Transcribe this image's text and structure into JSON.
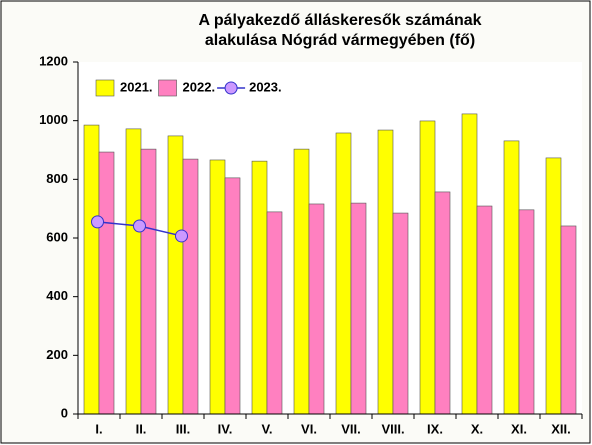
{
  "chart_data": {
    "type": "bar",
    "title": [
      "A pályakezdő álláskeresők számának",
      "alakulása Nógrád vármegyében (fő)"
    ],
    "categories": [
      "I.",
      "II.",
      "III.",
      "IV.",
      "V.",
      "VI.",
      "VII.",
      "VIII.",
      "IX.",
      "X.",
      "XI.",
      "XII."
    ],
    "series": [
      {
        "name": "2021.",
        "color": "#ffff00",
        "type": "bar",
        "values": [
          985,
          972,
          948,
          866,
          862,
          903,
          958,
          968,
          999,
          1023,
          931,
          873
        ]
      },
      {
        "name": "2022.",
        "color": "#ff80c0",
        "type": "bar",
        "values": [
          893,
          903,
          869,
          805,
          689,
          716,
          719,
          685,
          757,
          709,
          696,
          641
        ]
      },
      {
        "name": "2023.",
        "color": "#3333cc",
        "marker_color": "#cc99ff",
        "type": "line",
        "values": [
          655,
          641,
          607,
          null,
          null,
          null,
          null,
          null,
          null,
          null,
          null,
          null
        ]
      }
    ],
    "ylim": [
      0,
      1200
    ],
    "yticks": [
      0,
      200,
      400,
      600,
      800,
      1000,
      1200
    ],
    "grid": false,
    "legend": "top-left"
  }
}
